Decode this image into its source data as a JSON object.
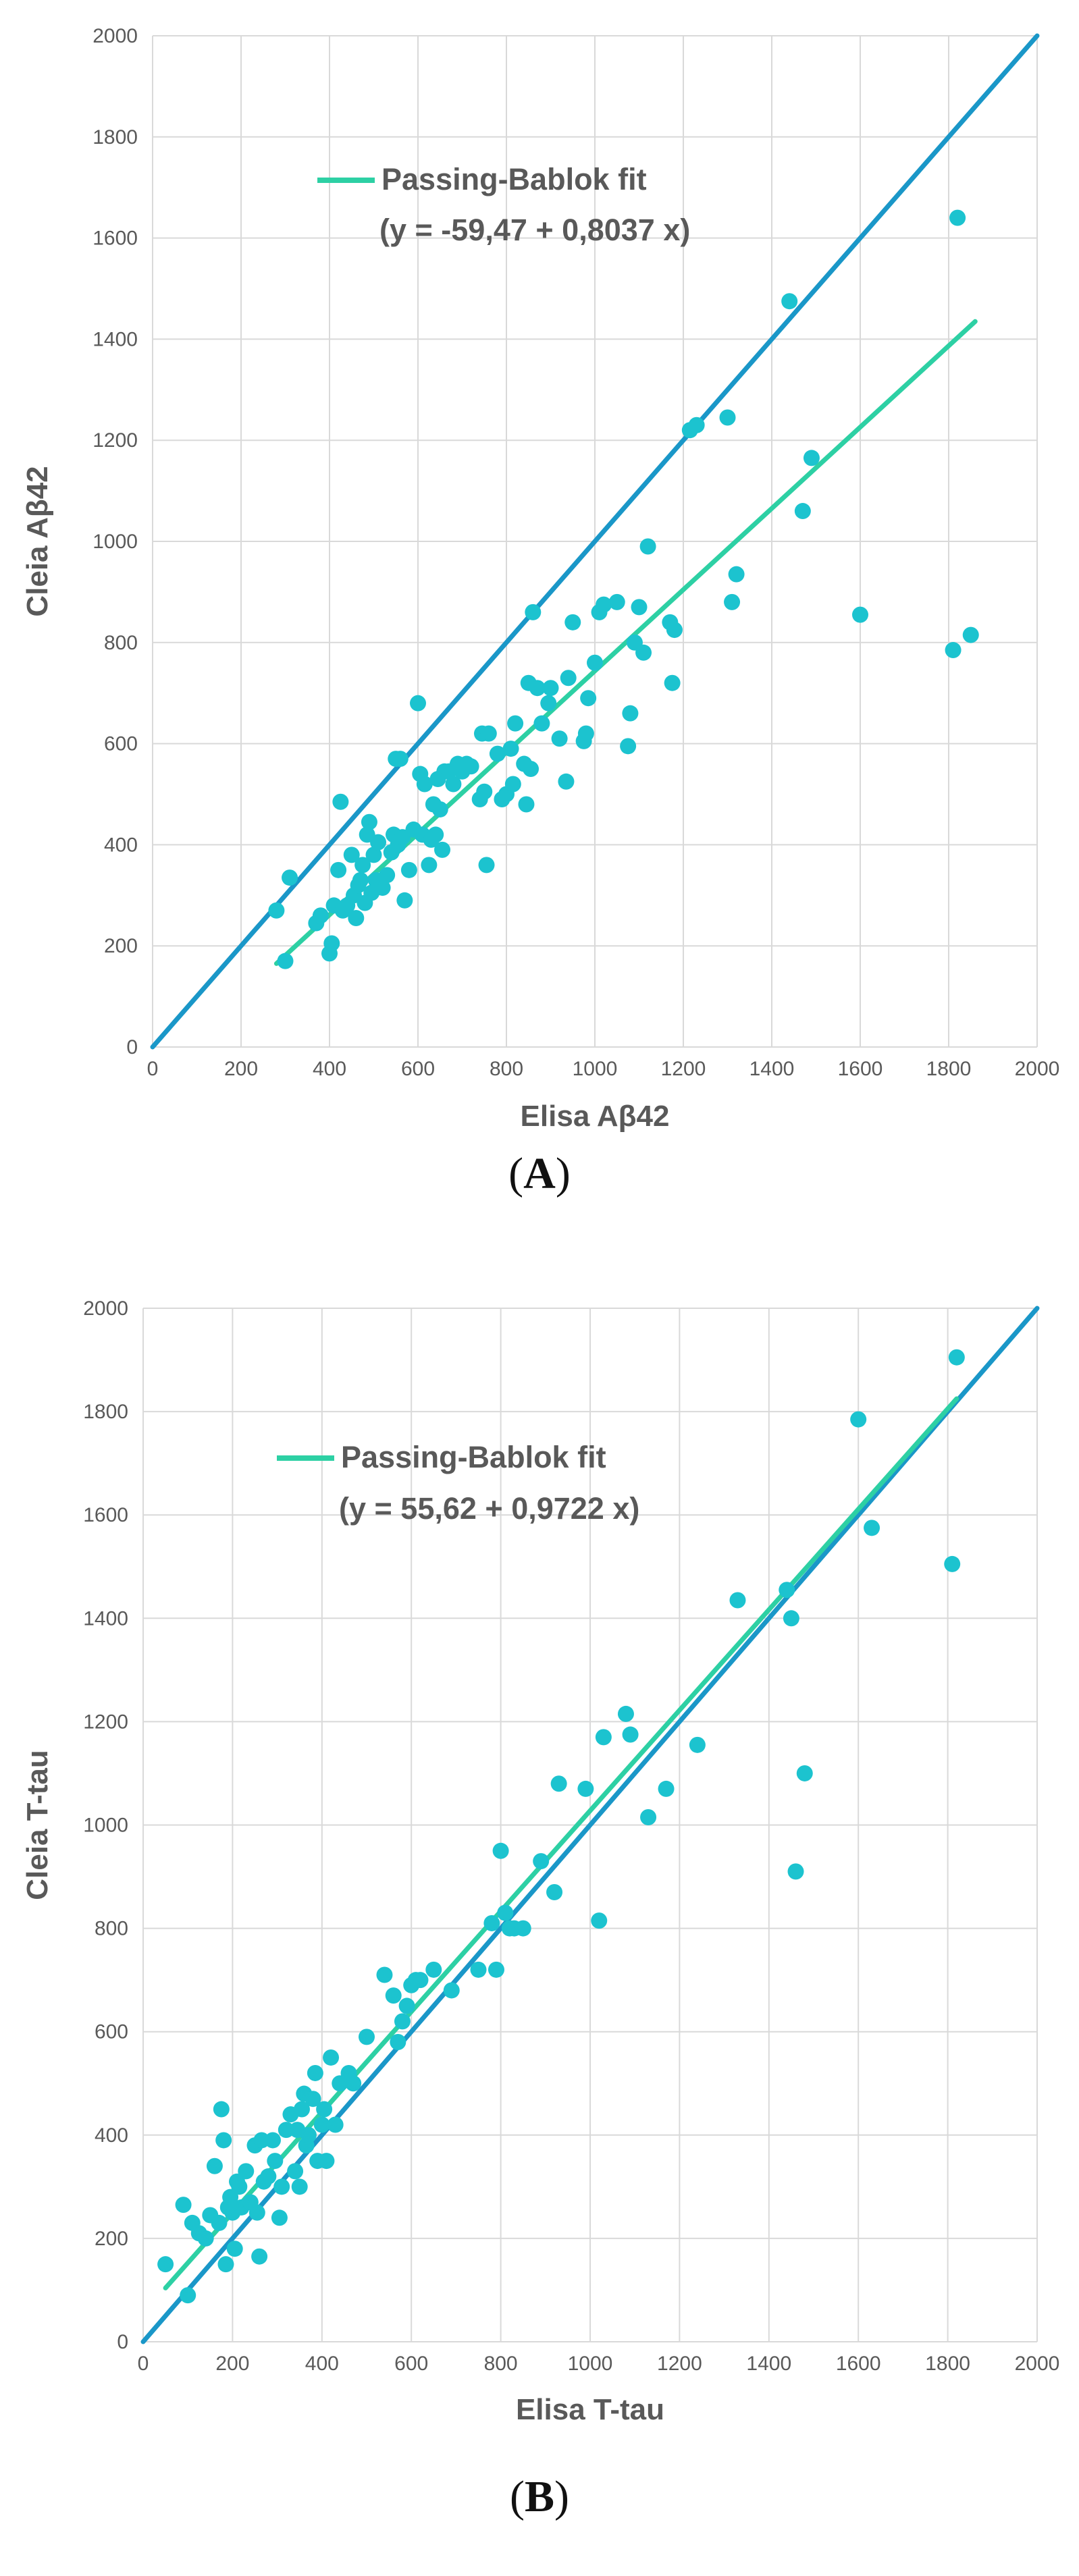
{
  "colors": {
    "identity_line": "#1a97c8",
    "fit_line": "#2dd0a4",
    "points": "#1cc3cf",
    "grid": "#d9d9d9",
    "text": "#595959"
  },
  "chart_data": [
    {
      "type": "scatter",
      "panel_label": "A",
      "xlabel": "Elisa Aβ42",
      "ylabel": "Cleia Aβ42",
      "xlim": [
        0,
        2000
      ],
      "ylim": [
        0,
        2000
      ],
      "x_ticks": [
        "0",
        "200",
        "400",
        "600",
        "800",
        "1000",
        "1200",
        "1400",
        "1600",
        "1800",
        "2000"
      ],
      "y_ticks": [
        "0",
        "200",
        "400",
        "600",
        "800",
        "1000",
        "1200",
        "1400",
        "1600",
        "1800",
        "2000"
      ],
      "grid": true,
      "legend": {
        "label": "Passing-Bablok fit",
        "equation": "(y = -59,47 + 0,8037 x)",
        "placement": "top-left"
      },
      "identity_line": {
        "x": [
          0,
          2000
        ],
        "y": [
          0,
          2000
        ]
      },
      "fit_line": {
        "x": [
          280,
          1860
        ],
        "y": [
          165,
          1435
        ]
      },
      "series": [
        {
          "name": "samples",
          "points": [
            [
              280,
              270
            ],
            [
              300,
              170
            ],
            [
              310,
              335
            ],
            [
              370,
              245
            ],
            [
              380,
              260
            ],
            [
              400,
              185
            ],
            [
              405,
              205
            ],
            [
              410,
              280
            ],
            [
              420,
              350
            ],
            [
              425,
              485
            ],
            [
              430,
              270
            ],
            [
              440,
              280
            ],
            [
              450,
              380
            ],
            [
              455,
              300
            ],
            [
              460,
              255
            ],
            [
              465,
              320
            ],
            [
              470,
              330
            ],
            [
              475,
              360
            ],
            [
              480,
              285
            ],
            [
              485,
              420
            ],
            [
              490,
              445
            ],
            [
              495,
              305
            ],
            [
              500,
              380
            ],
            [
              505,
              330
            ],
            [
              510,
              405
            ],
            [
              520,
              315
            ],
            [
              530,
              340
            ],
            [
              540,
              385
            ],
            [
              545,
              420
            ],
            [
              550,
              570
            ],
            [
              555,
              400
            ],
            [
              560,
              570
            ],
            [
              565,
              415
            ],
            [
              570,
              290
            ],
            [
              580,
              350
            ],
            [
              590,
              430
            ],
            [
              600,
              680
            ],
            [
              605,
              540
            ],
            [
              610,
              420
            ],
            [
              615,
              520
            ],
            [
              625,
              360
            ],
            [
              630,
              410
            ],
            [
              635,
              480
            ],
            [
              640,
              420
            ],
            [
              645,
              530
            ],
            [
              650,
              470
            ],
            [
              655,
              390
            ],
            [
              660,
              545
            ],
            [
              670,
              545
            ],
            [
              680,
              520
            ],
            [
              690,
              560
            ],
            [
              700,
              545
            ],
            [
              710,
              560
            ],
            [
              720,
              555
            ],
            [
              740,
              490
            ],
            [
              745,
              620
            ],
            [
              750,
              505
            ],
            [
              755,
              360
            ],
            [
              760,
              620
            ],
            [
              780,
              580
            ],
            [
              790,
              490
            ],
            [
              800,
              500
            ],
            [
              810,
              590
            ],
            [
              815,
              520
            ],
            [
              820,
              640
            ],
            [
              840,
              560
            ],
            [
              845,
              480
            ],
            [
              850,
              720
            ],
            [
              855,
              550
            ],
            [
              860,
              860
            ],
            [
              870,
              710
            ],
            [
              880,
              640
            ],
            [
              895,
              680
            ],
            [
              900,
              710
            ],
            [
              920,
              610
            ],
            [
              935,
              525
            ],
            [
              940,
              730
            ],
            [
              950,
              840
            ],
            [
              975,
              605
            ],
            [
              980,
              620
            ],
            [
              985,
              690
            ],
            [
              1000,
              760
            ],
            [
              1010,
              860
            ],
            [
              1020,
              875
            ],
            [
              1050,
              880
            ],
            [
              1075,
              595
            ],
            [
              1080,
              660
            ],
            [
              1090,
              800
            ],
            [
              1100,
              870
            ],
            [
              1110,
              780
            ],
            [
              1120,
              990
            ],
            [
              1170,
              840
            ],
            [
              1175,
              720
            ],
            [
              1180,
              825
            ],
            [
              1215,
              1220
            ],
            [
              1230,
              1230
            ],
            [
              1300,
              1245
            ],
            [
              1310,
              880
            ],
            [
              1320,
              935
            ],
            [
              1440,
              1475
            ],
            [
              1470,
              1060
            ],
            [
              1490,
              1165
            ],
            [
              1600,
              855
            ],
            [
              1810,
              785
            ],
            [
              1820,
              1640
            ],
            [
              1850,
              815
            ]
          ]
        }
      ]
    },
    {
      "type": "scatter",
      "panel_label": "B",
      "xlabel": "Elisa T-tau",
      "ylabel": "Cleia T-tau",
      "xlim": [
        0,
        2000
      ],
      "ylim": [
        0,
        2000
      ],
      "x_ticks": [
        "0",
        "200",
        "400",
        "600",
        "800",
        "1000",
        "1200",
        "1400",
        "1600",
        "1800",
        "2000"
      ],
      "y_ticks": [
        "0",
        "200",
        "400",
        "600",
        "800",
        "1000",
        "1200",
        "1400",
        "1600",
        "1800",
        "2000"
      ],
      "grid": true,
      "legend": {
        "label": "Passing-Bablok fit",
        "equation": "(y = 55,62 + 0,9722 x)",
        "placement": "top-left"
      },
      "identity_line": {
        "x": [
          0,
          2000
        ],
        "y": [
          0,
          2000
        ]
      },
      "fit_line": {
        "x": [
          50,
          1820
        ],
        "y": [
          104,
          1825
        ]
      },
      "series": [
        {
          "name": "samples",
          "points": [
            [
              50,
              150
            ],
            [
              90,
              265
            ],
            [
              100,
              90
            ],
            [
              110,
              230
            ],
            [
              125,
              210
            ],
            [
              140,
              200
            ],
            [
              150,
              245
            ],
            [
              160,
              340
            ],
            [
              170,
              230
            ],
            [
              175,
              450
            ],
            [
              180,
              390
            ],
            [
              185,
              150
            ],
            [
              190,
              260
            ],
            [
              195,
              280
            ],
            [
              200,
              250
            ],
            [
              205,
              180
            ],
            [
              210,
              310
            ],
            [
              215,
              300
            ],
            [
              220,
              260
            ],
            [
              230,
              330
            ],
            [
              240,
              270
            ],
            [
              250,
              380
            ],
            [
              255,
              250
            ],
            [
              260,
              165
            ],
            [
              265,
              390
            ],
            [
              270,
              310
            ],
            [
              280,
              320
            ],
            [
              290,
              390
            ],
            [
              295,
              350
            ],
            [
              305,
              240
            ],
            [
              310,
              300
            ],
            [
              320,
              410
            ],
            [
              330,
              440
            ],
            [
              340,
              330
            ],
            [
              345,
              410
            ],
            [
              350,
              300
            ],
            [
              355,
              450
            ],
            [
              360,
              480
            ],
            [
              365,
              380
            ],
            [
              370,
              400
            ],
            [
              380,
              470
            ],
            [
              385,
              520
            ],
            [
              390,
              350
            ],
            [
              400,
              420
            ],
            [
              405,
              450
            ],
            [
              410,
              350
            ],
            [
              420,
              550
            ],
            [
              430,
              420
            ],
            [
              440,
              500
            ],
            [
              460,
              520
            ],
            [
              470,
              500
            ],
            [
              500,
              590
            ],
            [
              540,
              710
            ],
            [
              560,
              670
            ],
            [
              570,
              580
            ],
            [
              580,
              620
            ],
            [
              590,
              650
            ],
            [
              600,
              690
            ],
            [
              610,
              700
            ],
            [
              620,
              700
            ],
            [
              650,
              720
            ],
            [
              690,
              680
            ],
            [
              750,
              720
            ],
            [
              780,
              810
            ],
            [
              790,
              720
            ],
            [
              800,
              950
            ],
            [
              810,
              830
            ],
            [
              820,
              800
            ],
            [
              830,
              800
            ],
            [
              850,
              800
            ],
            [
              890,
              930
            ],
            [
              920,
              870
            ],
            [
              930,
              1080
            ],
            [
              990,
              1070
            ],
            [
              1020,
              815
            ],
            [
              1030,
              1170
            ],
            [
              1080,
              1215
            ],
            [
              1090,
              1175
            ],
            [
              1130,
              1015
            ],
            [
              1170,
              1070
            ],
            [
              1240,
              1155
            ],
            [
              1330,
              1435
            ],
            [
              1440,
              1455
            ],
            [
              1450,
              1400
            ],
            [
              1460,
              910
            ],
            [
              1480,
              1100
            ],
            [
              1600,
              1785
            ],
            [
              1630,
              1575
            ],
            [
              1810,
              1505
            ],
            [
              1820,
              1905
            ]
          ]
        }
      ]
    }
  ]
}
